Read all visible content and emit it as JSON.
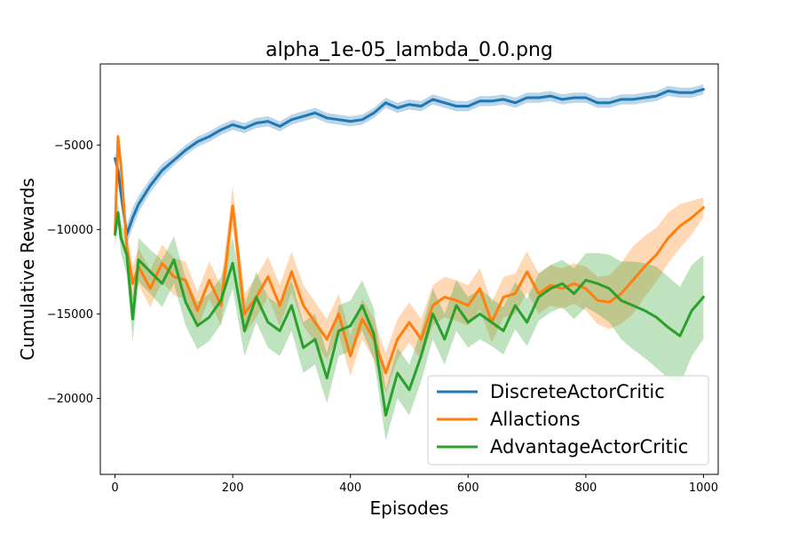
{
  "chart_data": {
    "type": "line",
    "title": "alpha_1e-05_lambda_0.0.png",
    "xlabel": "Episodes",
    "ylabel": "Cumulative Rewards",
    "xlim": [
      -25,
      1025
    ],
    "ylim": [
      -24500,
      -200
    ],
    "xticks": [
      0,
      200,
      400,
      600,
      800,
      1000
    ],
    "xtick_labels": [
      "0",
      "200",
      "400",
      "600",
      "800",
      "1000"
    ],
    "yticks": [
      -20000,
      -15000,
      -10000,
      -5000
    ],
    "ytick_labels": [
      "−20000",
      "−15000",
      "−10000",
      "−5000"
    ],
    "grid": false,
    "legend_position": "lower-right",
    "x": [
      0,
      5,
      10,
      20,
      30,
      40,
      60,
      80,
      100,
      120,
      140,
      160,
      180,
      200,
      220,
      240,
      260,
      280,
      300,
      320,
      340,
      360,
      380,
      400,
      420,
      440,
      460,
      480,
      500,
      520,
      540,
      560,
      580,
      600,
      620,
      640,
      660,
      680,
      700,
      720,
      740,
      760,
      780,
      800,
      820,
      840,
      860,
      880,
      900,
      920,
      940,
      960,
      980,
      1000
    ],
    "series": [
      {
        "name": "DiscreteActorCritic",
        "color": "#1f77b4",
        "values": [
          -5800,
          -6500,
          -7800,
          -10300,
          -9300,
          -8500,
          -7400,
          -6500,
          -5900,
          -5300,
          -4800,
          -4500,
          -4100,
          -3800,
          -4000,
          -3700,
          -3600,
          -3900,
          -3500,
          -3300,
          -3100,
          -3400,
          -3500,
          -3600,
          -3500,
          -3100,
          -2500,
          -2800,
          -2600,
          -2700,
          -2300,
          -2500,
          -2700,
          -2700,
          -2400,
          -2400,
          -2300,
          -2500,
          -2200,
          -2200,
          -2100,
          -2300,
          -2200,
          -2200,
          -2500,
          -2500,
          -2300,
          -2300,
          -2200,
          -2100,
          -1800,
          -1900,
          -1900,
          -1700
        ],
        "spread": [
          300,
          700,
          800,
          600,
          600,
          500,
          400,
          400,
          300,
          300,
          300,
          300,
          300,
          300,
          300,
          300,
          300,
          300,
          300,
          300,
          300,
          300,
          300,
          300,
          300,
          300,
          300,
          300,
          300,
          300,
          300,
          300,
          300,
          300,
          300,
          300,
          300,
          300,
          300,
          300,
          300,
          300,
          300,
          300,
          300,
          300,
          300,
          300,
          300,
          300,
          300,
          300,
          300,
          300
        ]
      },
      {
        "name": "Allactions",
        "color": "#ff7f0e",
        "values": [
          -10200,
          -4500,
          -6200,
          -11000,
          -13200,
          -12200,
          -13500,
          -12000,
          -12800,
          -13000,
          -14800,
          -13000,
          -14500,
          -8600,
          -15000,
          -14000,
          -12800,
          -14500,
          -12500,
          -14500,
          -15500,
          -16500,
          -15000,
          -17500,
          -15300,
          -16500,
          -18500,
          -16500,
          -15500,
          -16500,
          -14500,
          -14000,
          -14200,
          -14500,
          -13500,
          -15500,
          -14000,
          -13800,
          -12500,
          -13800,
          -13300,
          -13500,
          -13200,
          -13500,
          -14200,
          -14300,
          -13800,
          -13000,
          -12200,
          -11500,
          -10500,
          -9800,
          -9300,
          -8700
        ],
        "spread": [
          400,
          500,
          600,
          1000,
          1000,
          1100,
          1100,
          1100,
          1100,
          1100,
          1100,
          1100,
          1200,
          1200,
          1200,
          1200,
          1200,
          1200,
          1200,
          1200,
          1200,
          1200,
          1200,
          1200,
          1200,
          1200,
          1200,
          1200,
          1200,
          1200,
          1200,
          1200,
          1200,
          1200,
          1200,
          1200,
          1200,
          1200,
          1200,
          1200,
          1200,
          1200,
          1200,
          1300,
          1400,
          1600,
          1800,
          2000,
          1800,
          1600,
          1500,
          1300,
          1000,
          600
        ]
      },
      {
        "name": "AdvantageActorCritic",
        "color": "#2ca02c",
        "values": [
          -10300,
          -9000,
          -10500,
          -11500,
          -15300,
          -11800,
          -12500,
          -13200,
          -11800,
          -14300,
          -15700,
          -15200,
          -14200,
          -12000,
          -16000,
          -14000,
          -15500,
          -16000,
          -14500,
          -17000,
          -16500,
          -18800,
          -16000,
          -15700,
          -14500,
          -16200,
          -21000,
          -18500,
          -19500,
          -17500,
          -15000,
          -16500,
          -14500,
          -15500,
          -15000,
          -15500,
          -16000,
          -14500,
          -15500,
          -14000,
          -13500,
          -13200,
          -13800,
          -13000,
          -13200,
          -13500,
          -14200,
          -14500,
          -14800,
          -15200,
          -15800,
          -16300,
          -14800,
          -14000
        ],
        "spread": [
          700,
          700,
          900,
          1200,
          1300,
          1300,
          1300,
          1400,
          1400,
          1400,
          1400,
          1400,
          1400,
          1500,
          1500,
          1500,
          1500,
          1500,
          1500,
          1500,
          1500,
          1500,
          1500,
          1500,
          1500,
          1500,
          1500,
          1500,
          1500,
          1500,
          1500,
          1500,
          1500,
          1500,
          1500,
          1400,
          1400,
          1400,
          1400,
          1400,
          1400,
          1400,
          1500,
          1600,
          1800,
          2000,
          2300,
          2600,
          2800,
          3000,
          3000,
          2900,
          2700,
          2500
        ]
      }
    ]
  }
}
